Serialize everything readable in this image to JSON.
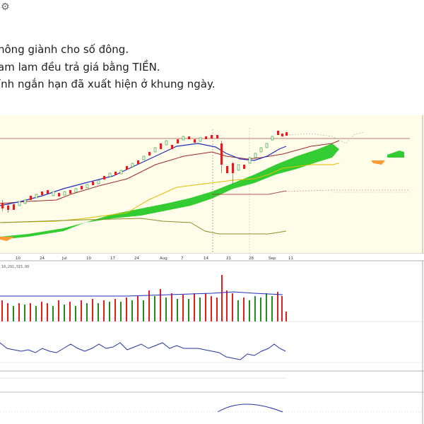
{
  "post": {
    "lines": [
      "hông giành cho số đông.",
      "am lam đều trả giá bằng TIỀN.",
      "ỉnh ngắn hạn đã xuất hiện ở khung ngày."
    ]
  },
  "chart": {
    "x_tick_labels": [
      "10",
      "24",
      "Jul",
      "10",
      "17",
      "24",
      "Aug",
      "7",
      "14",
      "21",
      "28",
      "Sep",
      "11"
    ],
    "volume_label": "10,291,515.00",
    "colors": {
      "panel_bg": "#fffde9",
      "cloud": "#33cc33",
      "cloud_bearish": "#ff9933",
      "tenkan": "#1f2fbf",
      "kijun": "#a0282a",
      "span_b": "#e0c000",
      "lagging": "#8c8c28",
      "candle_up": "#1e8c1e",
      "candle_down": "#e01e1e",
      "oscillator": "#2233aa"
    }
  }
}
